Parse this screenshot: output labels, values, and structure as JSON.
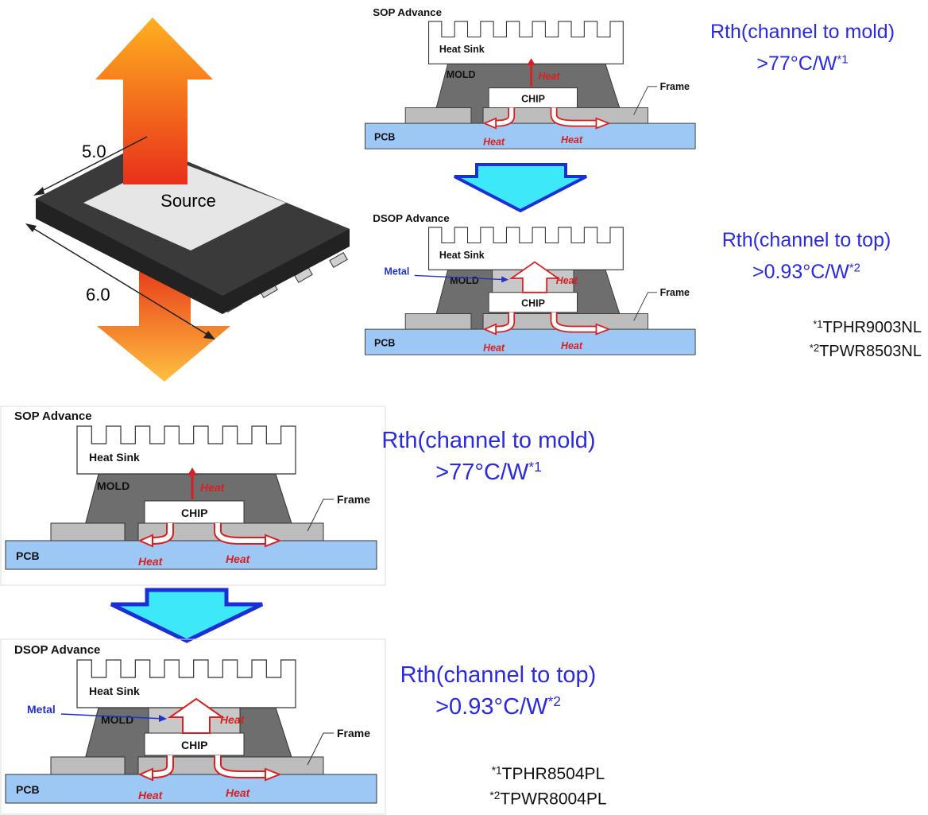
{
  "package": {
    "length": "5.0",
    "width": "6.0",
    "pad": "Source"
  },
  "sections": [
    {
      "sop": {
        "title": "SOP Advance",
        "heat_sink": "Heat Sink",
        "mold": "MOLD",
        "chip": "CHIP",
        "frame": "Frame",
        "pcb": "PCB",
        "heat": [
          "Heat",
          "Heat",
          "Heat"
        ]
      },
      "dsop": {
        "title": "DSOP Advance",
        "heat_sink": "Heat Sink",
        "mold": "MOLD",
        "chip": "CHIP",
        "frame": "Frame",
        "pcb": "PCB",
        "metal": "Metal",
        "heat": [
          "Heat",
          "Heat",
          "Heat"
        ]
      },
      "rth_sop": {
        "label": "Rth(channel to mold)",
        "value": ">77°C/W",
        "ref": "*1"
      },
      "rth_dsop": {
        "label": "Rth(channel to top)",
        "value": ">0.93°C/W",
        "ref": "*2"
      },
      "notes": [
        {
          "ref": "*1",
          "part": "TPHR9003NL"
        },
        {
          "ref": "*2",
          "part": "TPWR8503NL"
        }
      ]
    },
    {
      "sop": {
        "title": "SOP Advance",
        "heat_sink": "Heat Sink",
        "mold": "MOLD",
        "chip": "CHIP",
        "frame": "Frame",
        "pcb": "PCB",
        "heat": [
          "Heat",
          "Heat",
          "Heat"
        ]
      },
      "dsop": {
        "title": "DSOP Advance",
        "heat_sink": "Heat Sink",
        "mold": "MOLD",
        "chip": "CHIP",
        "frame": "Frame",
        "pcb": "PCB",
        "metal": "Metal",
        "heat": [
          "Heat",
          "Heat",
          "Heat"
        ]
      },
      "rth_sop": {
        "label": "Rth(channel to mold)",
        "value": ">77°C/W",
        "ref": "*1"
      },
      "rth_dsop": {
        "label": "Rth(channel to top)",
        "value": ">0.93°C/W",
        "ref": "*2"
      },
      "notes": [
        {
          "ref": "*1",
          "part": "TPHR8504PL"
        },
        {
          "ref": "*2",
          "part": "TPWR8004PL"
        }
      ]
    }
  ]
}
